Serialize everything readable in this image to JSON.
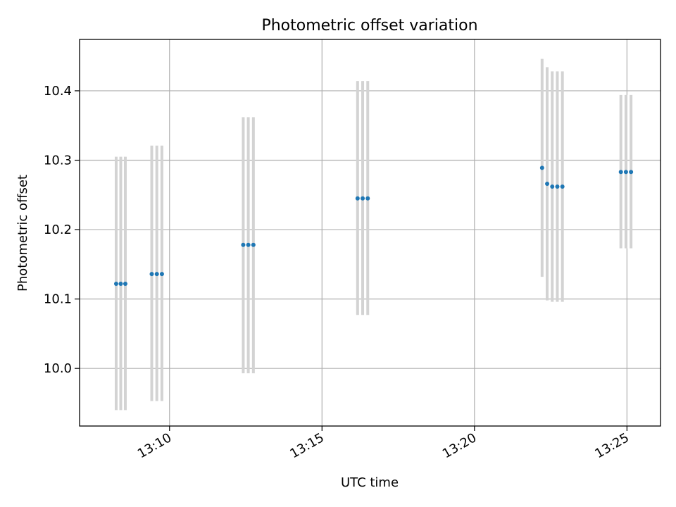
{
  "chart_data": {
    "type": "scatter",
    "title": "Photometric offset variation",
    "xlabel": "UTC time",
    "ylabel": "Photometric offset",
    "grid": true,
    "xlim": [
      "13:07:03",
      "13:26:06"
    ],
    "ylim": [
      9.917,
      10.474
    ],
    "x_ticks": [
      "13:10",
      "13:15",
      "13:20",
      "13:25"
    ],
    "y_ticks": [
      "10.0",
      "10.1",
      "10.2",
      "10.3",
      "10.4"
    ],
    "colors": {
      "point": "#1f77b4",
      "errorbar": "#d3d3d3",
      "grid": "#b0b0b0"
    },
    "points": [
      {
        "x": "13:08:15",
        "y": 10.122,
        "yerr": [
          9.94,
          10.305
        ]
      },
      {
        "x": "13:08:24",
        "y": 10.122,
        "yerr": [
          9.94,
          10.305
        ]
      },
      {
        "x": "13:08:33",
        "y": 10.122,
        "yerr": [
          9.94,
          10.305
        ]
      },
      {
        "x": "13:09:25",
        "y": 10.136,
        "yerr": [
          9.953,
          10.321
        ]
      },
      {
        "x": "13:09:35",
        "y": 10.136,
        "yerr": [
          9.953,
          10.321
        ]
      },
      {
        "x": "13:09:45",
        "y": 10.136,
        "yerr": [
          9.953,
          10.321
        ]
      },
      {
        "x": "13:12:25",
        "y": 10.178,
        "yerr": [
          9.993,
          10.362
        ]
      },
      {
        "x": "13:12:35",
        "y": 10.178,
        "yerr": [
          9.993,
          10.362
        ]
      },
      {
        "x": "13:12:45",
        "y": 10.178,
        "yerr": [
          9.993,
          10.362
        ]
      },
      {
        "x": "13:16:10",
        "y": 10.245,
        "yerr": [
          10.077,
          10.414
        ]
      },
      {
        "x": "13:16:20",
        "y": 10.245,
        "yerr": [
          10.077,
          10.414
        ]
      },
      {
        "x": "13:16:30",
        "y": 10.245,
        "yerr": [
          10.077,
          10.414
        ]
      },
      {
        "x": "13:22:13",
        "y": 10.289,
        "yerr": [
          10.132,
          10.446
        ]
      },
      {
        "x": "13:22:23",
        "y": 10.266,
        "yerr": [
          10.098,
          10.434
        ]
      },
      {
        "x": "13:22:33",
        "y": 10.262,
        "yerr": [
          10.096,
          10.428
        ]
      },
      {
        "x": "13:22:43",
        "y": 10.262,
        "yerr": [
          10.096,
          10.428
        ]
      },
      {
        "x": "13:22:53",
        "y": 10.262,
        "yerr": [
          10.096,
          10.428
        ]
      },
      {
        "x": "13:24:48",
        "y": 10.283,
        "yerr": [
          10.173,
          10.394
        ]
      },
      {
        "x": "13:24:58",
        "y": 10.283,
        "yerr": [
          10.173,
          10.394
        ]
      },
      {
        "x": "13:25:08",
        "y": 10.283,
        "yerr": [
          10.173,
          10.394
        ]
      }
    ]
  }
}
